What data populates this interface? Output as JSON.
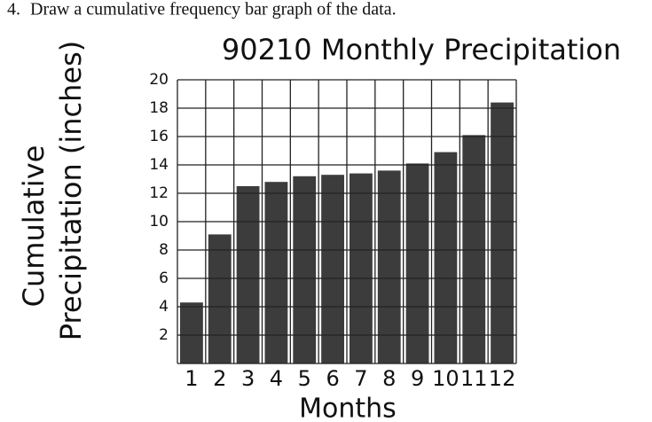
{
  "question_number": "4.",
  "question": "Draw a cumulative frequency bar graph of the data.",
  "chart_data": {
    "type": "bar",
    "title": "90210 Monthly Precipitation",
    "ylabel": [
      "Cumulative",
      "Precipitation (inches)"
    ],
    "xlabel": "Months",
    "categories": [
      "1",
      "2",
      "3",
      "4",
      "5",
      "6",
      "7",
      "8",
      "9",
      "10",
      "11",
      "12"
    ],
    "values": [
      4.3,
      9.1,
      12.5,
      12.8,
      13.2,
      13.3,
      13.4,
      13.6,
      14.1,
      14.9,
      16.1,
      18.4
    ],
    "color": "#1a1a1a",
    "ylim": [
      0,
      20
    ],
    "yticks": [
      2,
      4,
      6,
      8,
      10,
      12,
      14,
      16,
      18,
      20
    ],
    "grid": true
  }
}
